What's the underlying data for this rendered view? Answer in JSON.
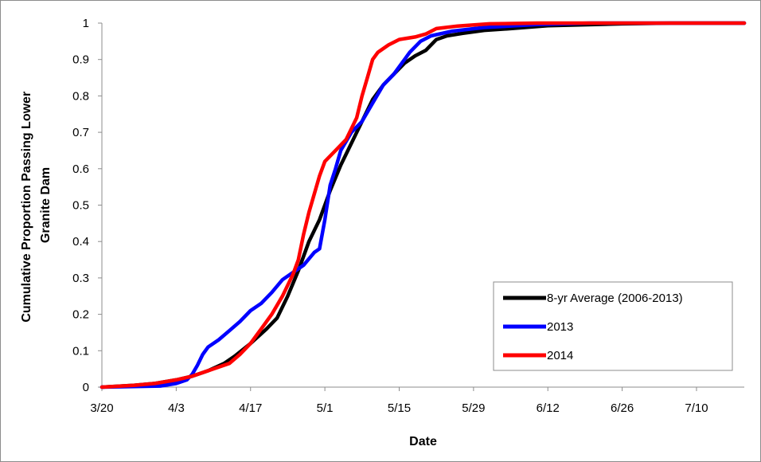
{
  "chart_data": {
    "type": "line",
    "xlabel": "Date",
    "ylabel_lines": [
      "Cumulative Proportion Passing Lower",
      "Granite Dam"
    ],
    "x_ticks": [
      "3/20",
      "4/3",
      "4/17",
      "5/1",
      "5/15",
      "5/29",
      "6/12",
      "6/26",
      "7/10"
    ],
    "y_ticks": [
      "0",
      "0.1",
      "0.2",
      "0.3",
      "0.4",
      "0.5",
      "0.6",
      "0.7",
      "0.8",
      "0.9",
      "1"
    ],
    "xlim": [
      "3/20",
      "7/19"
    ],
    "ylim": [
      0,
      1
    ],
    "grid": false,
    "legend_position": "bottom-right",
    "series": [
      {
        "name": "8-yr Average (2006-2013)",
        "color": "#000000",
        "points": [
          [
            "3/20",
            0
          ],
          [
            "3/26",
            0.005
          ],
          [
            "3/30",
            0.01
          ],
          [
            "4/3",
            0.02
          ],
          [
            "4/6",
            0.03
          ],
          [
            "4/9",
            0.045
          ],
          [
            "4/12",
            0.065
          ],
          [
            "4/14",
            0.085
          ],
          [
            "4/17",
            0.12
          ],
          [
            "4/20",
            0.16
          ],
          [
            "4/22",
            0.19
          ],
          [
            "4/24",
            0.25
          ],
          [
            "4/26",
            0.32
          ],
          [
            "4/28",
            0.4
          ],
          [
            "4/30",
            0.46
          ],
          [
            "5/2",
            0.54
          ],
          [
            "5/4",
            0.61
          ],
          [
            "5/6",
            0.67
          ],
          [
            "5/8",
            0.73
          ],
          [
            "5/10",
            0.79
          ],
          [
            "5/12",
            0.83
          ],
          [
            "5/14",
            0.86
          ],
          [
            "5/16",
            0.89
          ],
          [
            "5/18",
            0.91
          ],
          [
            "5/20",
            0.925
          ],
          [
            "5/22",
            0.955
          ],
          [
            "5/24",
            0.965
          ],
          [
            "5/27",
            0.972
          ],
          [
            "5/31",
            0.98
          ],
          [
            "6/5",
            0.985
          ],
          [
            "6/12",
            0.993
          ],
          [
            "6/26",
            0.998
          ],
          [
            "7/5",
            1.0
          ],
          [
            "7/19",
            1.0
          ]
        ]
      },
      {
        "name": "2013",
        "color": "#0000ff",
        "points": [
          [
            "3/20",
            0
          ],
          [
            "3/31",
            0.003
          ],
          [
            "4/3",
            0.01
          ],
          [
            "4/5",
            0.02
          ],
          [
            "4/6",
            0.035
          ],
          [
            "4/7",
            0.06
          ],
          [
            "4/8",
            0.09
          ],
          [
            "4/9",
            0.11
          ],
          [
            "4/11",
            0.13
          ],
          [
            "4/13",
            0.155
          ],
          [
            "4/15",
            0.18
          ],
          [
            "4/17",
            0.21
          ],
          [
            "4/19",
            0.23
          ],
          [
            "4/21",
            0.26
          ],
          [
            "4/23",
            0.295
          ],
          [
            "4/25",
            0.315
          ],
          [
            "4/27",
            0.335
          ],
          [
            "4/29",
            0.37
          ],
          [
            "4/30",
            0.38
          ],
          [
            "5/1",
            0.46
          ],
          [
            "5/2",
            0.555
          ],
          [
            "5/3",
            0.6
          ],
          [
            "5/4",
            0.65
          ],
          [
            "5/6",
            0.7
          ],
          [
            "5/8",
            0.73
          ],
          [
            "5/10",
            0.78
          ],
          [
            "5/12",
            0.83
          ],
          [
            "5/14",
            0.86
          ],
          [
            "5/16",
            0.9
          ],
          [
            "5/17",
            0.92
          ],
          [
            "5/19",
            0.95
          ],
          [
            "5/21",
            0.965
          ],
          [
            "5/25",
            0.978
          ],
          [
            "5/31",
            0.988
          ],
          [
            "6/10",
            0.996
          ],
          [
            "6/20",
            1.0
          ],
          [
            "7/19",
            1.0
          ]
        ]
      },
      {
        "name": "2014",
        "color": "#ff0000",
        "points": [
          [
            "3/20",
            0
          ],
          [
            "3/26",
            0.005
          ],
          [
            "3/30",
            0.01
          ],
          [
            "4/3",
            0.02
          ],
          [
            "4/6",
            0.03
          ],
          [
            "4/8",
            0.04
          ],
          [
            "4/10",
            0.05
          ],
          [
            "4/13",
            0.065
          ],
          [
            "4/15",
            0.09
          ],
          [
            "4/17",
            0.12
          ],
          [
            "4/19",
            0.16
          ],
          [
            "4/21",
            0.2
          ],
          [
            "4/23",
            0.25
          ],
          [
            "4/25",
            0.31
          ],
          [
            "4/26",
            0.35
          ],
          [
            "4/27",
            0.42
          ],
          [
            "4/28",
            0.48
          ],
          [
            "4/30",
            0.58
          ],
          [
            "5/1",
            0.62
          ],
          [
            "5/3",
            0.65
          ],
          [
            "5/5",
            0.68
          ],
          [
            "5/7",
            0.74
          ],
          [
            "5/8",
            0.8
          ],
          [
            "5/9",
            0.85
          ],
          [
            "5/10",
            0.9
          ],
          [
            "5/11",
            0.92
          ],
          [
            "5/13",
            0.94
          ],
          [
            "5/15",
            0.955
          ],
          [
            "5/18",
            0.962
          ],
          [
            "5/20",
            0.97
          ],
          [
            "5/22",
            0.985
          ],
          [
            "5/26",
            0.992
          ],
          [
            "6/1",
            0.998
          ],
          [
            "6/10",
            1.0
          ],
          [
            "7/19",
            1.0
          ]
        ]
      }
    ]
  }
}
